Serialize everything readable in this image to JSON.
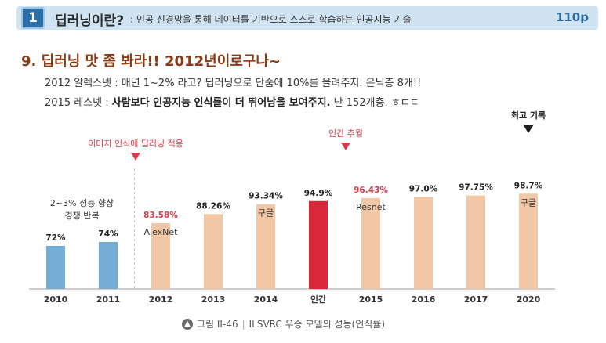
{
  "header": {
    "section_number": "1",
    "title": "딥러닝이란?",
    "subtitle": ": 인공 신경망을 통해 데이터를 기반으로 스스로 학습하는 인공지능 기술",
    "page": "110p"
  },
  "main_title": "9. 딥러닝 맛 좀 봐라!! 2012년이로구나~",
  "lines": {
    "line1": "2012 알렉스넷 : 매년 1~2% 라고? 딥러닝으로 단숨에 10%를 올려주지. 은닉층 8개!!",
    "line2_prefix": "2015 레스넷 : ",
    "line2_bold": "사람보다 인공지능 인식률이 더 뛰어남을 보여주지.",
    "line2_suffix": " 난 152개층. ㅎㄷㄷ"
  },
  "chart_data": {
    "type": "bar",
    "categories": [
      "2010",
      "2011",
      "2012",
      "2013",
      "2014",
      "인간",
      "2015",
      "2016",
      "2017",
      "2020"
    ],
    "values": [
      72,
      74,
      83.58,
      88.26,
      93.34,
      94.9,
      96.43,
      97.0,
      97.75,
      98.7
    ],
    "value_labels": [
      "72%",
      "74%",
      "83.58%",
      "88.26%",
      "93.34%",
      "94.9%",
      "96.43%",
      "97.0%",
      "97.75%",
      "98.7%"
    ],
    "bar_groups": [
      "pre",
      "pre",
      "dl",
      "dl",
      "dl",
      "human",
      "dl",
      "dl",
      "dl",
      "dl"
    ],
    "label_highlight": [
      false,
      false,
      true,
      false,
      false,
      false,
      true,
      false,
      false,
      false
    ],
    "bar_annotations": {
      "2012": "AlexNet",
      "2014": "구글",
      "2015": "Resnet",
      "2020": "구글"
    },
    "note_pre": [
      "2~3% 성능 향상",
      "경쟁 반복"
    ],
    "marker_dl_start": "이미지 인식에 딥러닝 적용",
    "marker_human": "인간 추월",
    "marker_record": "최고 기록",
    "colors": {
      "pre": "#74aed6",
      "dl": "#f2c7a5",
      "human": "#d8283a",
      "highlight_text": "#d83a4a",
      "marker": "#d83a4a",
      "record_marker": "#222222"
    }
  },
  "caption": {
    "icon": "arrow-up-circle-icon",
    "figure": "그림 II-46",
    "text": "ILSVRC 우승 모델의 성능(인식률)"
  }
}
